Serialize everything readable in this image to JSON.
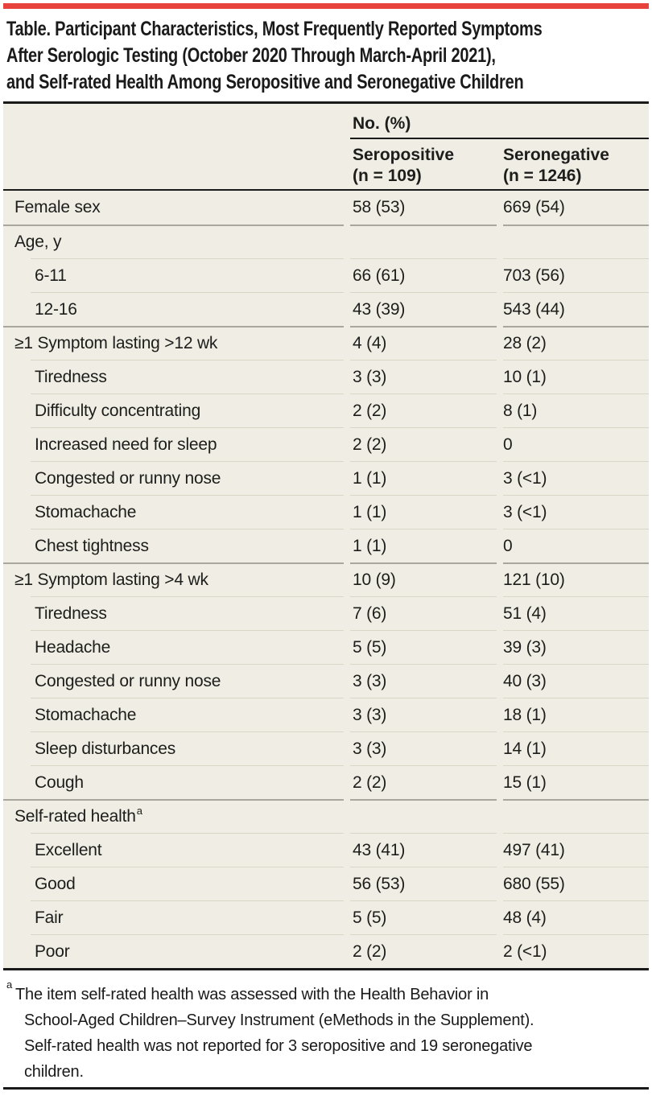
{
  "colors": {
    "page_bg": "#ffffff",
    "accent_red": "#e8423d",
    "table_bg": "#f0eee4",
    "text": "#1d1d1b",
    "rule_black": "#1a1a1a",
    "rule_dark": "#a9a79d",
    "rule_light": "#d9d6c8"
  },
  "title": "Table. Participant Characteristics, Most Frequently Reported Symptoms\nAfter Serologic Testing (October 2020 Through March-April 2021),\nand Self-rated Health Among Seropositive and Seronegative Children",
  "table": {
    "group_header": "No. (%)",
    "columns": [
      "Seropositive\n(n = 109)",
      "Seronegative\n(n = 1246)"
    ],
    "rows": [
      {
        "label": "Female sex",
        "seropositive": "58 (53)",
        "seronegative": "669 (54)",
        "indent": false,
        "section": false,
        "first": true
      },
      {
        "label": "Age, y",
        "seropositive": "",
        "seronegative": "",
        "indent": false,
        "section": true
      },
      {
        "label": "6-11",
        "seropositive": "66 (61)",
        "seronegative": "703 (56)",
        "indent": true,
        "section": false
      },
      {
        "label": "12-16",
        "seropositive": "43 (39)",
        "seronegative": "543 (44)",
        "indent": true,
        "section": false
      },
      {
        "label": "≥1 Symptom lasting >12 wk",
        "seropositive": "4 (4)",
        "seronegative": "28 (2)",
        "indent": false,
        "section": true
      },
      {
        "label": "Tiredness",
        "seropositive": "3 (3)",
        "seronegative": "10 (1)",
        "indent": true,
        "section": false
      },
      {
        "label": "Difficulty concentrating",
        "seropositive": "2 (2)",
        "seronegative": "8 (1)",
        "indent": true,
        "section": false
      },
      {
        "label": "Increased need for sleep",
        "seropositive": "2 (2)",
        "seronegative": "0",
        "indent": true,
        "section": false
      },
      {
        "label": "Congested or runny nose",
        "seropositive": "1 (1)",
        "seronegative": "3 (<1)",
        "indent": true,
        "section": false
      },
      {
        "label": "Stomachache",
        "seropositive": "1 (1)",
        "seronegative": "3 (<1)",
        "indent": true,
        "section": false
      },
      {
        "label": "Chest tightness",
        "seropositive": "1 (1)",
        "seronegative": "0",
        "indent": true,
        "section": false
      },
      {
        "label": "≥1 Symptom lasting >4 wk",
        "seropositive": "10 (9)",
        "seronegative": "121 (10)",
        "indent": false,
        "section": true
      },
      {
        "label": "Tiredness",
        "seropositive": "7 (6)",
        "seronegative": "51 (4)",
        "indent": true,
        "section": false
      },
      {
        "label": "Headache",
        "seropositive": "5 (5)",
        "seronegative": "39 (3)",
        "indent": true,
        "section": false
      },
      {
        "label": "Congested or runny nose",
        "seropositive": "3 (3)",
        "seronegative": "40 (3)",
        "indent": true,
        "section": false
      },
      {
        "label": "Stomachache",
        "seropositive": "3 (3)",
        "seronegative": "18 (1)",
        "indent": true,
        "section": false
      },
      {
        "label": "Sleep disturbances",
        "seropositive": "3 (3)",
        "seronegative": "14 (1)",
        "indent": true,
        "section": false
      },
      {
        "label": "Cough",
        "seropositive": "2 (2)",
        "seronegative": "15 (1)",
        "indent": true,
        "section": false
      },
      {
        "label": "Self-rated health",
        "sup": "a",
        "seropositive": "",
        "seronegative": "",
        "indent": false,
        "section": true
      },
      {
        "label": "Excellent",
        "seropositive": "43 (41)",
        "seronegative": "497 (41)",
        "indent": true,
        "section": false
      },
      {
        "label": "Good",
        "seropositive": "56 (53)",
        "seronegative": "680 (55)",
        "indent": true,
        "section": false
      },
      {
        "label": "Fair",
        "seropositive": "5 (5)",
        "seronegative": "48 (4)",
        "indent": true,
        "section": false
      },
      {
        "label": "Poor",
        "seropositive": "2 (2)",
        "seronegative": "2 (<1)",
        "indent": true,
        "section": false
      }
    ]
  },
  "footnote": {
    "marker": "a",
    "text": "The item self-rated health was assessed with the Health Behavior in\nSchool-Aged Children–Survey Instrument (eMethods in the Supplement).\nSelf-rated health was not reported for 3 seropositive and 19 seronegative\nchildren."
  }
}
